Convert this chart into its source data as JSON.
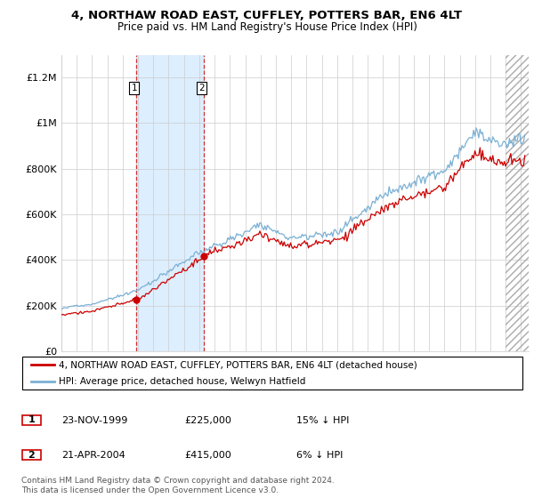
{
  "title1": "4, NORTHAW ROAD EAST, CUFFLEY, POTTERS BAR, EN6 4LT",
  "title2": "Price paid vs. HM Land Registry's House Price Index (HPI)",
  "ylabel_ticks": [
    "£0",
    "£200K",
    "£400K",
    "£600K",
    "£800K",
    "£1M",
    "£1.2M"
  ],
  "ytick_vals": [
    0,
    200000,
    400000,
    600000,
    800000,
    1000000,
    1200000
  ],
  "ylim": [
    0,
    1300000
  ],
  "xlim_start": 1995.0,
  "xlim_end": 2025.5,
  "legend_line1": "4, NORTHAW ROAD EAST, CUFFLEY, POTTERS BAR, EN6 4LT (detached house)",
  "legend_line2": "HPI: Average price, detached house, Welwyn Hatfield",
  "sale1_label": "1",
  "sale1_date": "23-NOV-1999",
  "sale1_price": "£225,000",
  "sale1_hpi": "15% ↓ HPI",
  "sale1_x": 1999.9,
  "sale1_y": 225000,
  "sale2_label": "2",
  "sale2_date": "21-APR-2004",
  "sale2_price": "£415,000",
  "sale2_hpi": "6% ↓ HPI",
  "sale2_x": 2004.3,
  "sale2_y": 415000,
  "shaded_xstart": 1999.9,
  "shaded_xend": 2004.3,
  "hatch_xstart": 2024.0,
  "footer": "Contains HM Land Registry data © Crown copyright and database right 2024.\nThis data is licensed under the Open Government Licence v3.0.",
  "red_color": "#cc0000",
  "blue_color": "#7ab0d4",
  "shade_color": "#ddeeff",
  "dashed_color": "#cc0000",
  "hatch_color": "#cccccc"
}
